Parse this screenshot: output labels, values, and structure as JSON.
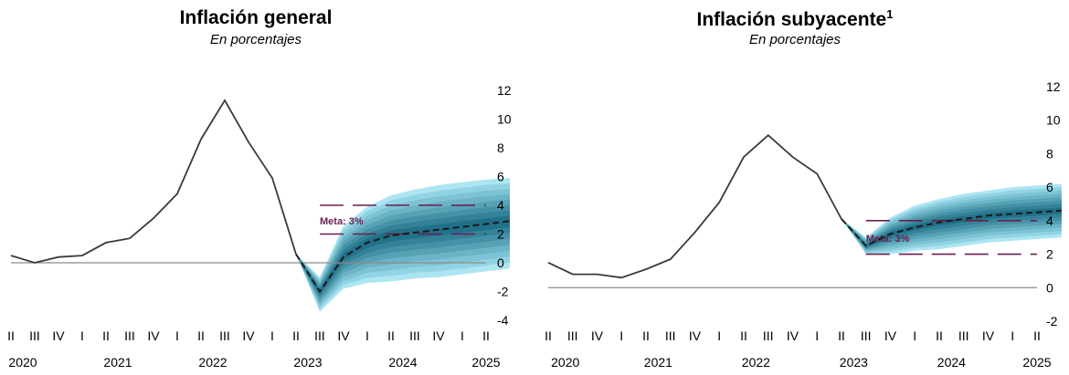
{
  "chart_data": [
    {
      "type": "line",
      "title": "Inflación general",
      "subtitle": "En porcentajes",
      "ylim": [
        -4,
        12
      ],
      "yticks": [
        12,
        10,
        8,
        6,
        4,
        2,
        0,
        -2,
        -4
      ],
      "quarter_labels": [
        "II",
        "III",
        "IV",
        "I",
        "II",
        "III",
        "IV",
        "I",
        "II",
        "III",
        "IV",
        "I",
        "II",
        "III",
        "IV",
        "I",
        "II",
        "III",
        "IV",
        "I",
        "II"
      ],
      "year_labels": [
        "2020",
        "2021",
        "2022",
        "2023",
        "2024",
        "2025"
      ],
      "year_label_index": [
        0.5,
        4.5,
        8.5,
        12.5,
        16.5,
        20
      ],
      "series": [
        {
          "values": [
            0.5,
            0.0,
            0.4,
            0.5,
            1.4,
            1.7,
            3.1,
            4.8,
            8.6,
            11.3,
            8.4,
            5.9,
            0.6
          ]
        }
      ],
      "forecast": {
        "start_index": 12,
        "values": [
          0.6,
          -2.0,
          0.4,
          1.4,
          1.9,
          2.1,
          2.3,
          2.5,
          2.7,
          2.9
        ],
        "fan_upper": [
          0.6,
          -1.0,
          2.6,
          3.9,
          4.7,
          5.1,
          5.4,
          5.6,
          5.8,
          5.9
        ],
        "fan_lower": [
          0.6,
          -3.4,
          -1.8,
          -1.4,
          -1.3,
          -1.1,
          -1.0,
          -0.8,
          -0.6,
          -0.4
        ]
      },
      "target_band": [
        2,
        4
      ],
      "target_label": "Meta: 3%",
      "colors": {
        "line": "#3a3a3a",
        "fan": "#16617a",
        "fan_light": "#9fe0f0",
        "target": "#6b1e4e",
        "zero": "#8a8a8a"
      }
    },
    {
      "type": "line",
      "title": "Inflación subyacente",
      "title_sup": "1",
      "subtitle": "En porcentajes",
      "ylim": [
        -2,
        12
      ],
      "yticks": [
        12,
        10,
        8,
        6,
        4,
        2,
        0,
        -2
      ],
      "quarter_labels": [
        "II",
        "III",
        "IV",
        "I",
        "II",
        "III",
        "IV",
        "I",
        "II",
        "III",
        "IV",
        "I",
        "II",
        "III",
        "IV",
        "I",
        "II",
        "III",
        "IV",
        "I",
        "II"
      ],
      "year_labels": [
        "2020",
        "2021",
        "2022",
        "2023",
        "2024",
        "2025"
      ],
      "year_label_index": [
        0.7,
        4.5,
        8.5,
        12.5,
        16.5,
        20
      ],
      "series": [
        {
          "values": [
            1.5,
            0.8,
            0.8,
            0.6,
            1.1,
            1.7,
            3.3,
            5.1,
            7.8,
            9.1,
            7.8,
            6.8,
            4.1
          ]
        }
      ],
      "forecast": {
        "start_index": 12,
        "values": [
          4.1,
          2.5,
          3.2,
          3.6,
          3.9,
          4.1,
          4.3,
          4.4,
          4.5,
          4.6
        ],
        "fan_upper": [
          4.1,
          3.0,
          4.2,
          4.9,
          5.3,
          5.6,
          5.8,
          6.0,
          6.1,
          6.2
        ],
        "fan_lower": [
          4.1,
          2.0,
          2.0,
          2.2,
          2.3,
          2.5,
          2.7,
          2.8,
          2.9,
          3.0
        ]
      },
      "target_band": [
        2,
        4
      ],
      "target_label": "Meta: 3%",
      "colors": {
        "line": "#3a3a3a",
        "fan": "#16617a",
        "fan_light": "#9fe0f0",
        "target": "#6b1e4e",
        "zero": "#8a8a8a"
      }
    }
  ]
}
